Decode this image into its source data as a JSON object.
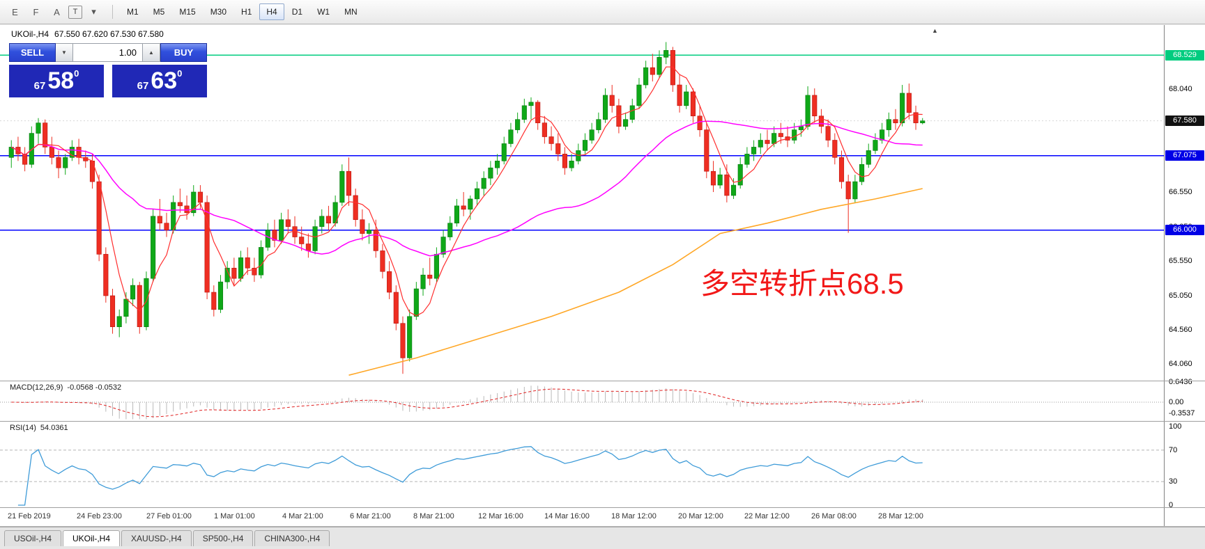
{
  "toolbar": {
    "icons": [
      {
        "name": "candlestick-chart-icon",
        "glyph": "E",
        "boxed": false
      },
      {
        "name": "indicator-window-icon",
        "glyph": "F",
        "boxed": false
      },
      {
        "name": "font-tool-icon",
        "glyph": "A",
        "boxed": false
      },
      {
        "name": "text-label-tool-icon",
        "glyph": "T",
        "boxed": true
      },
      {
        "name": "drawing-tools-dropdown-icon",
        "glyph": "▾",
        "boxed": false
      }
    ],
    "timeframes": [
      "M1",
      "M5",
      "M15",
      "M30",
      "H1",
      "H4",
      "D1",
      "W1",
      "MN"
    ],
    "active_timeframe": "H4"
  },
  "chart": {
    "symbol_timeframe": "UKOil-,H4",
    "ohlc_line": "67.550 67.620 67.530 67.580",
    "shift_marker_glyph": "▲",
    "annotation": {
      "text": "多空转折点68.5",
      "color": "#f21818"
    },
    "levels": [
      {
        "label": "68.529",
        "value": 68.529,
        "color": "#00cc7f"
      },
      {
        "label": "67.075",
        "value": 67.075,
        "color": "#0000ff"
      },
      {
        "label": "66.000",
        "value": 66.0,
        "color": "#0000ff"
      }
    ],
    "current_price": {
      "label": "67.580",
      "value": 67.58,
      "badge_bg": "#111111"
    },
    "axis_plain_labels": [
      {
        "label": "68.040",
        "value": 68.04
      },
      {
        "label": "66.550",
        "value": 66.55
      },
      {
        "label": "66.050",
        "value": 66.05
      },
      {
        "label": "65.550",
        "value": 65.55
      },
      {
        "label": "65.050",
        "value": 65.05
      },
      {
        "label": "64.560",
        "value": 64.56
      },
      {
        "label": "64.060",
        "value": 64.06
      }
    ]
  },
  "trade_panel": {
    "sell_label": "SELL",
    "buy_label": "BUY",
    "volume": "1.00",
    "dropdown_glyph": "▼",
    "spin_up_glyph": "▲",
    "panel_color": "#2028b6",
    "sell_price": {
      "small": "67",
      "big": "58",
      "sup": "0"
    },
    "buy_price": {
      "small": "67",
      "big": "63",
      "sup": "0"
    }
  },
  "macd": {
    "label": "MACD(12,26,9)",
    "values": "-0.0568 -0.0532",
    "params": {
      "fast": 12,
      "slow": 26,
      "signal": 9
    },
    "axis": [
      {
        "label": "0.6436",
        "value": 0.6436
      },
      {
        "label": "0.00",
        "value": 0
      },
      {
        "label": "-0.3537",
        "value": -0.3537
      }
    ]
  },
  "rsi": {
    "label": "RSI(14)",
    "value": "54.0361",
    "period": 14,
    "levels": [
      70,
      30
    ],
    "axis": [
      {
        "label": "100",
        "value": 100
      },
      {
        "label": "70",
        "value": 70
      },
      {
        "label": "30",
        "value": 30
      },
      {
        "label": "0",
        "value": 0
      }
    ]
  },
  "time_axis": [
    "21 Feb 2019",
    "24 Feb 23:00",
    "27 Feb 01:00",
    "1 Mar 01:00",
    "4 Mar 21:00",
    "6 Mar 21:00",
    "8 Mar 21:00",
    "12 Mar 16:00",
    "14 Mar 16:00",
    "18 Mar 12:00",
    "20 Mar 12:00",
    "22 Mar 12:00",
    "26 Mar 08:00",
    "28 Mar 12:00"
  ],
  "tabs": {
    "active": "UKOil-,H4",
    "items": [
      "USOil-,H4",
      "UKOil-,H4",
      "XAUUSD-,H4",
      "SP500-,H4",
      "CHINA300-,H4"
    ]
  },
  "chart_data": {
    "type": "candlestick",
    "symbol": "UKOil-",
    "timeframe": "H4",
    "last_ohlc": {
      "open": 67.55,
      "high": 67.62,
      "low": 67.53,
      "close": 67.58
    },
    "y_axis_range": [
      63.85,
      68.9
    ],
    "horizontal_lines": [
      68.529,
      67.075,
      66.0
    ],
    "up_color": "#0fa818",
    "down_color": "#ee2e22",
    "moving_averages": {
      "fast_period": 5,
      "medium_period": 34,
      "colors": {
        "fast": "#ff2e2e",
        "medium": "#ff00ff",
        "slow": "#ffa726"
      },
      "slow_anchor_points": [
        [
          50,
          63.9
        ],
        [
          60,
          64.15
        ],
        [
          70,
          64.45
        ],
        [
          80,
          64.75
        ],
        [
          90,
          65.1
        ],
        [
          98,
          65.5
        ],
        [
          105,
          65.95
        ],
        [
          112,
          66.1
        ],
        [
          120,
          66.3
        ],
        [
          128,
          66.45
        ],
        [
          135,
          66.6
        ]
      ]
    },
    "candles": [
      [
        67.05,
        67.3,
        66.9,
        67.2
      ],
      [
        67.2,
        67.35,
        67.0,
        67.1
      ],
      [
        67.1,
        67.2,
        66.85,
        66.95
      ],
      [
        66.95,
        67.5,
        66.9,
        67.4
      ],
      [
        67.4,
        67.62,
        67.25,
        67.55
      ],
      [
        67.55,
        67.6,
        67.1,
        67.2
      ],
      [
        67.2,
        67.35,
        66.95,
        67.05
      ],
      [
        67.05,
        67.15,
        66.75,
        66.9
      ],
      [
        66.9,
        67.1,
        66.8,
        67.05
      ],
      [
        67.05,
        67.3,
        67.0,
        67.2
      ],
      [
        67.2,
        67.32,
        66.95,
        67.05
      ],
      [
        67.05,
        67.15,
        66.9,
        67.0
      ],
      [
        67.0,
        67.1,
        66.6,
        66.7
      ],
      [
        66.7,
        66.8,
        65.55,
        65.65
      ],
      [
        65.65,
        65.75,
        64.95,
        65.05
      ],
      [
        65.05,
        65.15,
        64.5,
        64.6
      ],
      [
        64.6,
        64.85,
        64.45,
        64.75
      ],
      [
        64.75,
        65.1,
        64.65,
        65.0
      ],
      [
        65.0,
        65.3,
        64.9,
        65.2
      ],
      [
        65.2,
        65.25,
        64.5,
        64.6
      ],
      [
        64.6,
        65.4,
        64.55,
        65.3
      ],
      [
        65.3,
        66.3,
        65.25,
        66.2
      ],
      [
        66.2,
        66.45,
        66.0,
        66.1
      ],
      [
        66.1,
        66.25,
        65.9,
        66.0
      ],
      [
        66.0,
        66.5,
        65.95,
        66.4
      ],
      [
        66.4,
        66.6,
        66.25,
        66.35
      ],
      [
        66.35,
        66.5,
        66.15,
        66.25
      ],
      [
        66.25,
        66.65,
        66.2,
        66.55
      ],
      [
        66.55,
        66.65,
        66.3,
        66.4
      ],
      [
        66.4,
        66.5,
        65.0,
        65.1
      ],
      [
        65.1,
        65.2,
        64.75,
        64.85
      ],
      [
        64.85,
        65.35,
        64.8,
        65.25
      ],
      [
        65.25,
        65.55,
        65.15,
        65.45
      ],
      [
        65.45,
        65.6,
        65.2,
        65.3
      ],
      [
        65.3,
        65.7,
        65.25,
        65.6
      ],
      [
        65.6,
        65.75,
        65.35,
        65.45
      ],
      [
        65.45,
        65.6,
        65.25,
        65.35
      ],
      [
        65.35,
        65.85,
        65.3,
        65.75
      ],
      [
        65.75,
        66.1,
        65.7,
        66.0
      ],
      [
        66.0,
        66.15,
        65.75,
        65.85
      ],
      [
        65.85,
        66.25,
        65.8,
        66.15
      ],
      [
        66.15,
        66.3,
        65.95,
        66.05
      ],
      [
        66.05,
        66.2,
        65.8,
        65.9
      ],
      [
        65.9,
        66.05,
        65.7,
        65.8
      ],
      [
        65.8,
        65.95,
        65.6,
        65.7
      ],
      [
        65.7,
        66.15,
        65.65,
        66.05
      ],
      [
        66.05,
        66.3,
        65.95,
        66.2
      ],
      [
        66.2,
        66.35,
        66.0,
        66.1
      ],
      [
        66.1,
        66.5,
        66.05,
        66.4
      ],
      [
        66.4,
        66.95,
        66.35,
        66.85
      ],
      [
        66.85,
        67.05,
        66.35,
        66.5
      ],
      [
        66.5,
        66.6,
        66.05,
        66.15
      ],
      [
        66.15,
        66.3,
        65.85,
        65.95
      ],
      [
        65.95,
        66.1,
        65.8,
        66.0
      ],
      [
        66.0,
        66.15,
        65.6,
        65.7
      ],
      [
        65.7,
        65.8,
        65.3,
        65.4
      ],
      [
        65.4,
        65.55,
        65.0,
        65.1
      ],
      [
        65.1,
        65.2,
        64.55,
        64.65
      ],
      [
        64.65,
        64.75,
        63.92,
        64.15
      ],
      [
        64.15,
        64.85,
        64.1,
        64.75
      ],
      [
        64.75,
        65.25,
        64.7,
        65.15
      ],
      [
        65.15,
        65.45,
        65.05,
        65.35
      ],
      [
        65.35,
        65.6,
        65.2,
        65.3
      ],
      [
        65.3,
        65.75,
        65.25,
        65.65
      ],
      [
        65.65,
        66.0,
        65.6,
        65.9
      ],
      [
        65.9,
        66.2,
        65.85,
        66.1
      ],
      [
        66.1,
        66.45,
        66.05,
        66.35
      ],
      [
        66.35,
        66.55,
        66.2,
        66.3
      ],
      [
        66.3,
        66.5,
        66.15,
        66.45
      ],
      [
        66.45,
        66.7,
        66.35,
        66.6
      ],
      [
        66.6,
        66.85,
        66.5,
        66.75
      ],
      [
        66.75,
        67.0,
        66.65,
        66.9
      ],
      [
        66.9,
        67.1,
        66.8,
        67.0
      ],
      [
        67.0,
        67.35,
        66.95,
        67.25
      ],
      [
        67.25,
        67.55,
        67.2,
        67.45
      ],
      [
        67.45,
        67.7,
        67.4,
        67.6
      ],
      [
        67.6,
        67.9,
        67.55,
        67.8
      ],
      [
        67.8,
        67.92,
        67.6,
        67.85
      ],
      [
        67.85,
        67.88,
        67.45,
        67.55
      ],
      [
        67.55,
        67.65,
        67.25,
        67.35
      ],
      [
        67.35,
        67.5,
        67.15,
        67.25
      ],
      [
        67.25,
        67.4,
        67.0,
        67.1
      ],
      [
        67.1,
        67.2,
        66.8,
        66.9
      ],
      [
        66.9,
        67.1,
        66.85,
        67.0
      ],
      [
        67.0,
        67.25,
        66.95,
        67.15
      ],
      [
        67.15,
        67.4,
        67.1,
        67.3
      ],
      [
        67.3,
        67.55,
        67.25,
        67.45
      ],
      [
        67.45,
        67.7,
        67.4,
        67.6
      ],
      [
        67.6,
        68.05,
        67.55,
        67.95
      ],
      [
        67.95,
        68.1,
        67.7,
        67.8
      ],
      [
        67.8,
        67.9,
        67.4,
        67.5
      ],
      [
        67.5,
        67.7,
        67.45,
        67.6
      ],
      [
        67.6,
        67.9,
        67.55,
        67.8
      ],
      [
        67.8,
        68.2,
        67.75,
        68.1
      ],
      [
        68.1,
        68.45,
        68.05,
        68.35
      ],
      [
        68.35,
        68.55,
        68.15,
        68.25
      ],
      [
        68.25,
        68.6,
        68.2,
        68.5
      ],
      [
        68.5,
        68.72,
        68.4,
        68.6
      ],
      [
        68.6,
        68.65,
        68.0,
        68.1
      ],
      [
        68.1,
        68.25,
        67.7,
        67.8
      ],
      [
        67.8,
        68.1,
        67.75,
        68.0
      ],
      [
        68.0,
        68.05,
        67.55,
        67.65
      ],
      [
        67.65,
        67.8,
        67.35,
        67.45
      ],
      [
        67.45,
        67.55,
        66.75,
        66.85
      ],
      [
        66.85,
        67.0,
        66.55,
        66.65
      ],
      [
        66.65,
        66.9,
        66.6,
        66.8
      ],
      [
        66.8,
        66.95,
        66.4,
        66.5
      ],
      [
        66.5,
        66.75,
        66.45,
        66.65
      ],
      [
        66.65,
        67.05,
        66.6,
        66.95
      ],
      [
        66.95,
        67.2,
        66.9,
        67.1
      ],
      [
        67.1,
        67.3,
        67.0,
        67.2
      ],
      [
        67.2,
        67.4,
        67.1,
        67.3
      ],
      [
        67.3,
        67.45,
        67.15,
        67.25
      ],
      [
        67.25,
        67.5,
        67.2,
        67.4
      ],
      [
        67.4,
        67.55,
        67.25,
        67.35
      ],
      [
        67.35,
        67.5,
        67.2,
        67.3
      ],
      [
        67.3,
        67.55,
        67.25,
        67.45
      ],
      [
        67.45,
        67.6,
        67.35,
        67.5
      ],
      [
        67.5,
        68.08,
        67.45,
        67.95
      ],
      [
        67.95,
        68.05,
        67.55,
        67.65
      ],
      [
        67.65,
        67.75,
        67.4,
        67.5
      ],
      [
        67.5,
        67.6,
        67.2,
        67.3
      ],
      [
        67.3,
        67.4,
        66.95,
        67.05
      ],
      [
        67.05,
        67.15,
        66.6,
        66.7
      ],
      [
        66.7,
        66.8,
        65.96,
        66.45
      ],
      [
        66.45,
        66.8,
        66.4,
        66.7
      ],
      [
        66.7,
        67.05,
        66.65,
        66.95
      ],
      [
        66.95,
        67.25,
        66.9,
        67.15
      ],
      [
        67.15,
        67.4,
        67.1,
        67.3
      ],
      [
        67.3,
        67.55,
        67.25,
        67.45
      ],
      [
        67.45,
        67.7,
        67.35,
        67.6
      ],
      [
        67.6,
        67.75,
        67.45,
        67.55
      ],
      [
        67.55,
        68.1,
        67.5,
        67.98
      ],
      [
        67.98,
        68.12,
        67.6,
        67.7
      ],
      [
        67.7,
        67.8,
        67.45,
        67.55
      ],
      [
        67.55,
        67.62,
        67.53,
        67.58
      ]
    ]
  }
}
